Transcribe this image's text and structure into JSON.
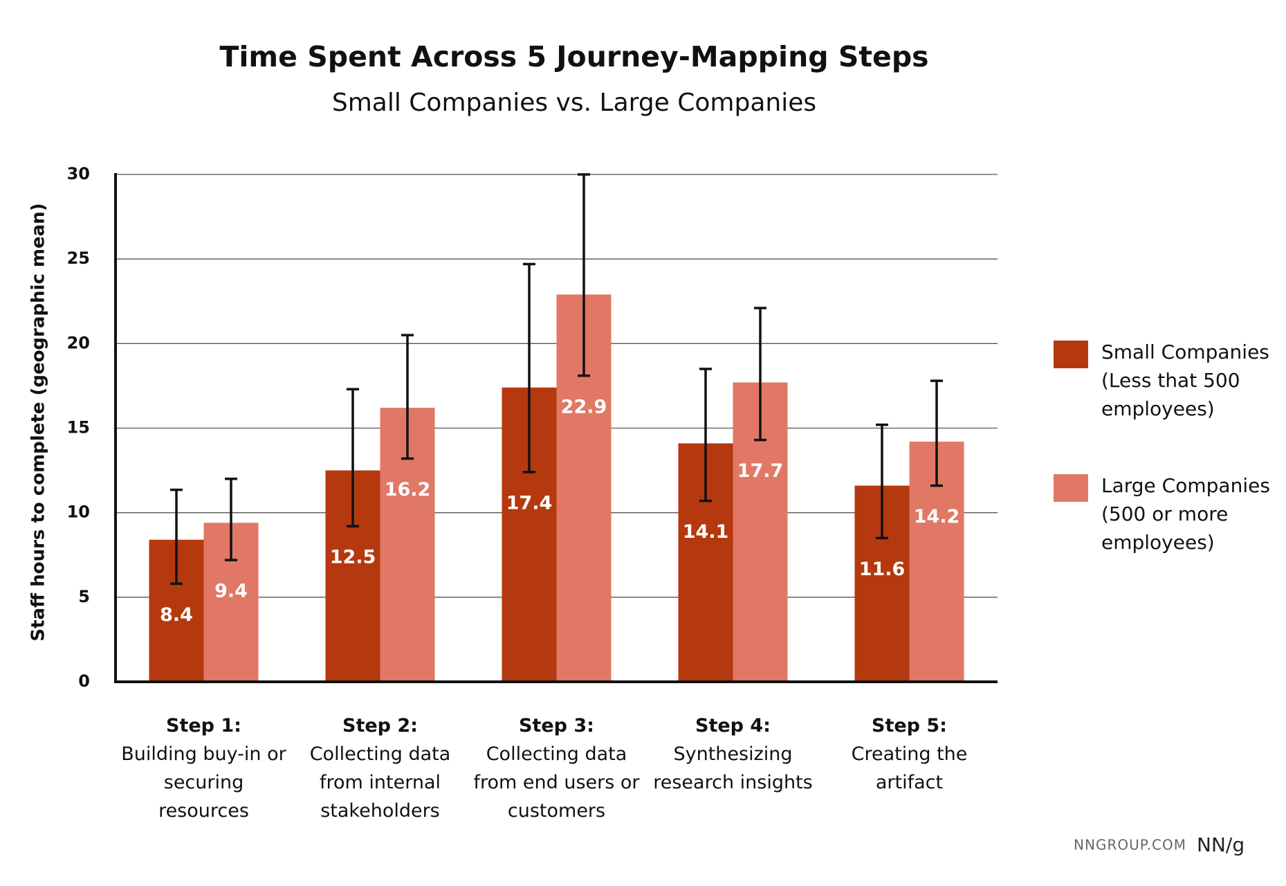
{
  "chart_data": {
    "type": "bar",
    "title": "Time Spent Across 5 Journey-Mapping Steps",
    "subtitle": "Small Companies vs. Large Companies",
    "y_label": "Staff hours to complete (geographic mean)",
    "categories": [
      "Step 1:",
      "Step 2:",
      "Step 3:",
      "Step 4:",
      "Step 5:"
    ],
    "category_descriptions": [
      "Building buy-in or securing resources",
      "Collecting data from internal stakeholders",
      "Collecting data from end users or customers",
      "Synthesizing research insights",
      "Creating the artifact"
    ],
    "series": [
      {
        "name": "Small Companies (Less that 500 employees)",
        "color": "#b5390e",
        "values": [
          8.4,
          12.5,
          17.4,
          14.1,
          11.6
        ],
        "lower": [
          5.8,
          9.2,
          12.4,
          10.7,
          8.5
        ],
        "upper": [
          11.35,
          17.3,
          24.7,
          18.5,
          15.2
        ]
      },
      {
        "name": "Large Companies (500 or more employees)",
        "color": "#e07865",
        "values": [
          9.4,
          16.2,
          22.9,
          17.7,
          14.2
        ],
        "lower": [
          7.2,
          13.2,
          18.1,
          14.3,
          11.6
        ],
        "upper": [
          12.0,
          20.5,
          30.0,
          22.1,
          17.8
        ]
      }
    ],
    "ylim": [
      0,
      30
    ],
    "yticks": [
      0,
      5,
      10,
      15,
      20,
      25,
      30
    ],
    "grid": true,
    "legend": "right",
    "source": "NNGROUP.COM",
    "logo": "NN/g"
  }
}
